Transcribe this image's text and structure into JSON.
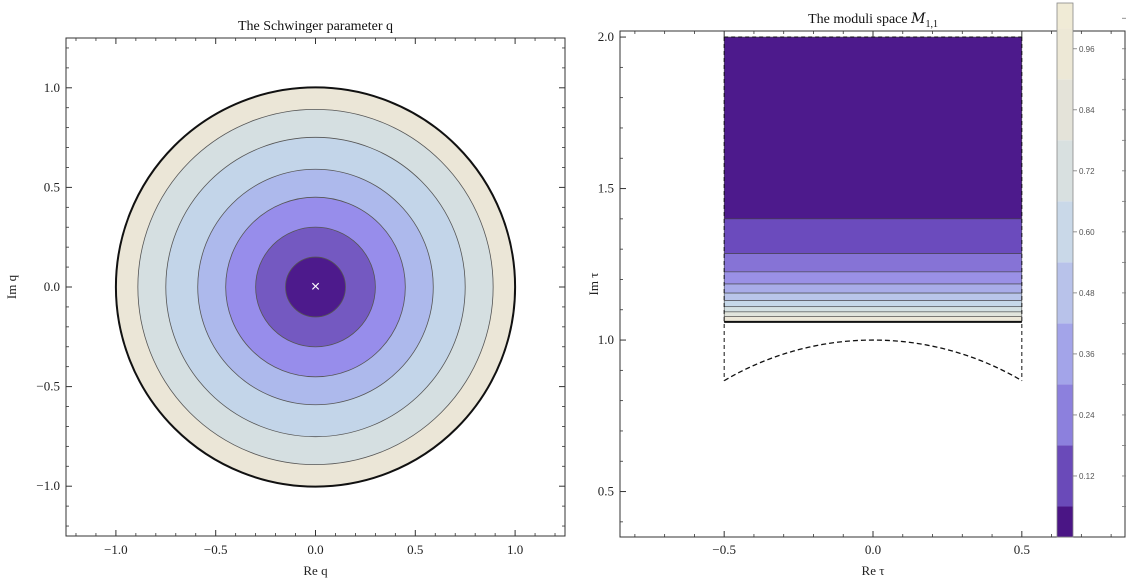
{
  "chart_data": [
    {
      "type": "contour",
      "title": "The Schwinger parameter q",
      "xlabel": "Re q",
      "ylabel": "Im q",
      "xlim": [
        -1.25,
        1.25
      ],
      "ylim": [
        -1.25,
        1.25
      ],
      "xticks": [
        "−1.0",
        "−0.5",
        "0.0",
        "0.5",
        "1.0"
      ],
      "xtick_values": [
        -1.0,
        -0.5,
        0.0,
        0.5,
        1.0
      ],
      "yticks": [
        "−1.0",
        "−0.5",
        "0.0",
        "0.5",
        "1.0"
      ],
      "ytick_values": [
        -1.0,
        -0.5,
        0.0,
        0.5,
        1.0
      ],
      "contour_radii": [
        1.0,
        0.89,
        0.75,
        0.59,
        0.45,
        0.3,
        0.15
      ],
      "contour_colors": [
        "#ebe6d7",
        "#d5dfe1",
        "#c3d5e9",
        "#adb9ec",
        "#978deb",
        "#7459c1",
        "#4d1a8c"
      ],
      "marker": {
        "x": 0,
        "y": 0,
        "symbol": "×"
      },
      "grid": false
    },
    {
      "type": "contour",
      "title": "The moduli space ",
      "title_math": {
        "base": "M",
        "sub": "1,1"
      },
      "xlabel": "Re τ",
      "ylabel": "Im τ",
      "xlim": [
        -0.85,
        0.85
      ],
      "ylim": [
        0.35,
        2.02
      ],
      "xticks": [
        "−0.5",
        "0.0",
        "0.5"
      ],
      "xtick_values": [
        -0.5,
        0.0,
        0.5
      ],
      "yticks": [
        "0.5",
        "1.0",
        "1.5",
        "2.0"
      ],
      "ytick_values": [
        0.5,
        1.0,
        1.5,
        2.0
      ],
      "strip": {
        "x_min": -0.5,
        "x_max": 0.5,
        "y_top": 2.0,
        "y_cut": 1.06
      },
      "bands": [
        {
          "y0": 1.4,
          "y1": 2.0,
          "color": "#4d1a8c"
        },
        {
          "y0": 1.285,
          "y1": 1.4,
          "color": "#6b4bbd"
        },
        {
          "y0": 1.225,
          "y1": 1.285,
          "color": "#8673d6"
        },
        {
          "y0": 1.185,
          "y1": 1.225,
          "color": "#9a90e6"
        },
        {
          "y0": 1.155,
          "y1": 1.185,
          "color": "#a9ace9"
        },
        {
          "y0": 1.13,
          "y1": 1.155,
          "color": "#b9c5ea"
        },
        {
          "y0": 1.11,
          "y1": 1.13,
          "color": "#c6d8e9"
        },
        {
          "y0": 1.093,
          "y1": 1.11,
          "color": "#d4e0e2"
        },
        {
          "y0": 1.078,
          "y1": 1.093,
          "color": "#e1e4dc"
        },
        {
          "y0": 1.06,
          "y1": 1.078,
          "color": "#ece7d8"
        }
      ],
      "boundary_arc": {
        "radius": 1.0,
        "x_range": [
          -0.5,
          0.5
        ]
      },
      "grid": false
    },
    {
      "type": "colorbar",
      "range": [
        0,
        1.05
      ],
      "tick_labels": [
        "0.12",
        "0.24",
        "0.36",
        "0.48",
        "0.60",
        "0.72",
        "0.84",
        "0.96"
      ],
      "tick_values": [
        0.12,
        0.24,
        0.36,
        0.48,
        0.6,
        0.72,
        0.84,
        0.96
      ],
      "levels": [
        0,
        0.06,
        0.18,
        0.3,
        0.42,
        0.54,
        0.66,
        0.78,
        0.9,
        1.0,
        1.05
      ],
      "colors": [
        "#4a1585",
        "#6a4ab9",
        "#8c80dd",
        "#a3a4e9",
        "#b8c2ea",
        "#c9d8e8",
        "#d8e0e0",
        "#e4e3d9",
        "#ede8d6",
        "#f0ebd6"
      ]
    }
  ]
}
